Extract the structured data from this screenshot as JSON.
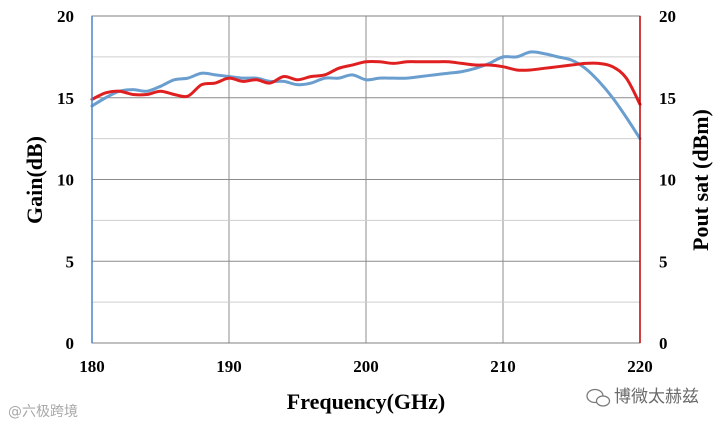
{
  "chart_data": {
    "type": "line",
    "xlabel": "Frequency(GHz)",
    "ylabel": "Gain(dB)",
    "y2label": "Pout sat (dBm)",
    "xlim": [
      180,
      220
    ],
    "ylim": [
      0,
      20
    ],
    "y2lim": [
      0,
      20
    ],
    "xticks": [
      "180",
      "190",
      "200",
      "210",
      "220"
    ],
    "yticks": [
      "0",
      "5",
      "10",
      "15",
      "20"
    ],
    "y2ticks": [
      "0",
      "5",
      "10",
      "15",
      "20"
    ],
    "grid": true,
    "series": [
      {
        "axis": "left",
        "color": "#6a9ecf",
        "x": [
          180,
          181,
          182,
          183,
          184,
          185,
          186,
          187,
          188,
          189,
          190,
          191,
          192,
          193,
          194,
          195,
          196,
          197,
          198,
          199,
          200,
          201,
          202,
          203,
          204,
          205,
          206,
          207,
          208,
          209,
          210,
          211,
          212,
          213,
          214,
          215,
          216,
          217,
          218,
          219,
          220
        ],
        "values": [
          14.5,
          15.0,
          15.4,
          15.5,
          15.4,
          15.7,
          16.1,
          16.2,
          16.5,
          16.4,
          16.3,
          16.2,
          16.2,
          16.0,
          16.0,
          15.8,
          15.9,
          16.2,
          16.2,
          16.4,
          16.1,
          16.2,
          16.2,
          16.2,
          16.3,
          16.4,
          16.5,
          16.6,
          16.8,
          17.1,
          17.5,
          17.5,
          17.8,
          17.7,
          17.5,
          17.3,
          16.8,
          16.0,
          15.0,
          13.8,
          12.5
        ]
      },
      {
        "axis": "right",
        "color": "#e02020",
        "x": [
          180,
          181,
          182,
          183,
          184,
          185,
          186,
          187,
          188,
          189,
          190,
          191,
          192,
          193,
          194,
          195,
          196,
          197,
          198,
          199,
          200,
          201,
          202,
          203,
          204,
          205,
          206,
          207,
          208,
          209,
          210,
          211,
          212,
          213,
          214,
          215,
          216,
          217,
          218,
          219,
          220
        ],
        "values": [
          14.9,
          15.3,
          15.4,
          15.2,
          15.2,
          15.4,
          15.2,
          15.1,
          15.8,
          15.9,
          16.2,
          16.0,
          16.1,
          15.9,
          16.3,
          16.1,
          16.3,
          16.4,
          16.8,
          17.0,
          17.2,
          17.2,
          17.1,
          17.2,
          17.2,
          17.2,
          17.2,
          17.1,
          17.0,
          17.0,
          16.9,
          16.7,
          16.7,
          16.8,
          16.9,
          17.0,
          17.1,
          17.1,
          16.9,
          16.2,
          14.6
        ]
      }
    ]
  },
  "watermark": {
    "left": "@六极跨境",
    "right": "博微太赫兹"
  }
}
